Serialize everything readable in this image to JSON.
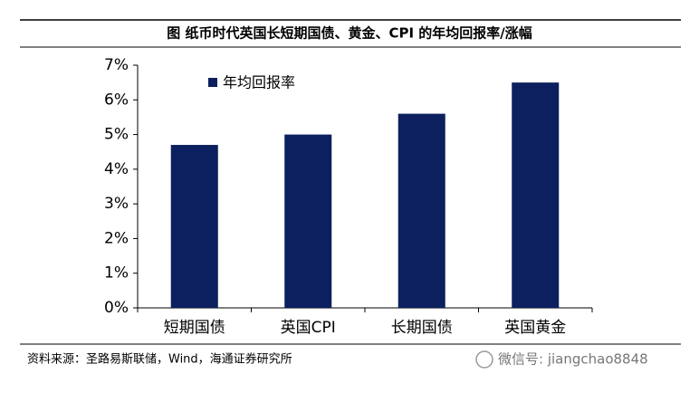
{
  "chart_data": {
    "type": "bar",
    "title": "图  纸币时代英国长短期国债、黄金、CPI 的年均回报率/涨幅",
    "categories": [
      "短期国债",
      "英国CPI",
      "长期国债",
      "英国黄金"
    ],
    "series": [
      {
        "name": "年均回报率",
        "color": "#0c1f5e",
        "values": [
          4.7,
          5.0,
          5.6,
          6.5
        ]
      }
    ],
    "ylim": [
      0,
      7
    ],
    "yticks": [
      {
        "value": 0,
        "label": "0%"
      },
      {
        "value": 1,
        "label": "1%"
      },
      {
        "value": 2,
        "label": "2%"
      },
      {
        "value": 3,
        "label": "3%"
      },
      {
        "value": 4,
        "label": "4%"
      },
      {
        "value": 5,
        "label": "5%"
      },
      {
        "value": 6,
        "label": "6%"
      },
      {
        "value": 7,
        "label": "7%"
      }
    ],
    "legend": "top-left",
    "source": "资料来源：圣路易斯联储，Wind，海通证券研究所",
    "watermark": "微信号: jiangchao8848"
  }
}
